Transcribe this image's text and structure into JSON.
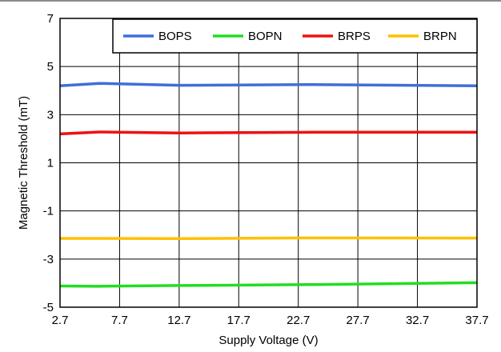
{
  "chart_data": {
    "type": "line",
    "xlabel": "Supply Voltage (V)",
    "ylabel": "Magnetic Threshold (mT)",
    "xlim": [
      2.7,
      37.7
    ],
    "ylim": [
      -5,
      7
    ],
    "xticks": [
      "2.7",
      "7.7",
      "12.7",
      "17.7",
      "22.7",
      "27.7",
      "32.7",
      "37.7"
    ],
    "yticks": [
      "-5",
      "-3",
      "-1",
      "1",
      "3",
      "5",
      "7"
    ],
    "grid": true,
    "legend_position": "top-right",
    "series": [
      {
        "name": "BOPS",
        "color": "#3f6fd8",
        "x": [
          2.7,
          6.0,
          12.7,
          24.0,
          37.7
        ],
        "y": [
          4.2,
          4.3,
          4.22,
          4.25,
          4.2
        ]
      },
      {
        "name": "BOPN",
        "color": "#22dd22",
        "x": [
          2.7,
          6.0,
          12.7,
          24.0,
          37.7
        ],
        "y": [
          -4.12,
          -4.13,
          -4.1,
          -4.06,
          -3.98
        ]
      },
      {
        "name": "BRPS",
        "color": "#ee1111",
        "x": [
          2.7,
          6.0,
          12.7,
          24.0,
          37.7
        ],
        "y": [
          2.2,
          2.28,
          2.24,
          2.27,
          2.27
        ]
      },
      {
        "name": "BRPN",
        "color": "#ffc000",
        "x": [
          2.7,
          6.0,
          12.7,
          24.0,
          37.7
        ],
        "y": [
          -2.14,
          -2.14,
          -2.15,
          -2.12,
          -2.13
        ]
      }
    ]
  }
}
